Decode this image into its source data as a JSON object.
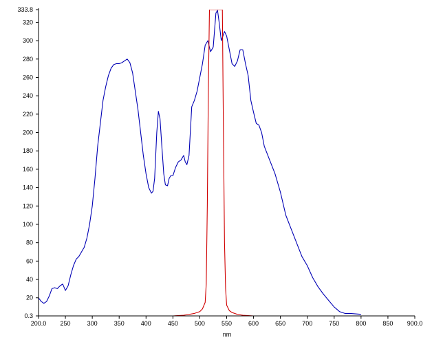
{
  "chart_data": {
    "type": "line",
    "xlabel": "nm",
    "ylabel": "",
    "xlim": [
      200,
      900
    ],
    "ylim": [
      0.3,
      333.8
    ],
    "grid": false,
    "colors": {
      "series_blue": "#0000b4",
      "series_red": "#d00000",
      "axis": "#000000"
    },
    "x_ticks": [
      {
        "value": 200,
        "label": "200.0"
      },
      {
        "value": 250,
        "label": "250"
      },
      {
        "value": 300,
        "label": "300"
      },
      {
        "value": 350,
        "label": "350"
      },
      {
        "value": 400,
        "label": "400"
      },
      {
        "value": 450,
        "label": "450"
      },
      {
        "value": 500,
        "label": "500"
      },
      {
        "value": 550,
        "label": "550"
      },
      {
        "value": 600,
        "label": "600"
      },
      {
        "value": 650,
        "label": "650"
      },
      {
        "value": 700,
        "label": "700"
      },
      {
        "value": 750,
        "label": "750"
      },
      {
        "value": 800,
        "label": "800"
      },
      {
        "value": 850,
        "label": "850"
      },
      {
        "value": 900,
        "label": "900.0"
      }
    ],
    "y_ticks": [
      {
        "value": 0.3,
        "label": "0.3"
      },
      {
        "value": 20,
        "label": "20"
      },
      {
        "value": 40,
        "label": "40"
      },
      {
        "value": 60,
        "label": "60"
      },
      {
        "value": 80,
        "label": "80"
      },
      {
        "value": 100,
        "label": "100"
      },
      {
        "value": 120,
        "label": "120"
      },
      {
        "value": 140,
        "label": "140"
      },
      {
        "value": 160,
        "label": "160"
      },
      {
        "value": 180,
        "label": "180"
      },
      {
        "value": 200,
        "label": "200"
      },
      {
        "value": 220,
        "label": "220"
      },
      {
        "value": 240,
        "label": "240"
      },
      {
        "value": 260,
        "label": "260"
      },
      {
        "value": 280,
        "label": "280"
      },
      {
        "value": 300,
        "label": "300"
      },
      {
        "value": 320,
        "label": "320"
      },
      {
        "value": 333.8,
        "label": "333.8"
      }
    ],
    "series": [
      {
        "color": "#0000b4",
        "x": [
          200,
          205,
          210,
          215,
          220,
          225,
          230,
          235,
          240,
          245,
          250,
          255,
          260,
          265,
          270,
          275,
          280,
          285,
          290,
          295,
          300,
          305,
          310,
          315,
          320,
          325,
          330,
          335,
          340,
          345,
          350,
          355,
          360,
          365,
          370,
          375,
          380,
          385,
          390,
          395,
          400,
          405,
          410,
          413,
          416,
          420,
          423,
          426,
          430,
          433,
          436,
          440,
          443,
          446,
          450,
          455,
          460,
          465,
          470,
          473,
          476,
          480,
          485,
          490,
          495,
          500,
          505,
          510,
          515,
          520,
          525,
          530,
          533,
          536,
          540,
          543,
          546,
          550,
          555,
          560,
          565,
          570,
          575,
          580,
          585,
          590,
          595,
          600,
          605,
          610,
          615,
          620,
          630,
          640,
          650,
          660,
          670,
          680,
          690,
          700,
          710,
          720,
          730,
          740,
          750,
          760,
          770,
          780,
          790,
          800
        ],
        "y": [
          20,
          16,
          14,
          16,
          22,
          30,
          31,
          30,
          33,
          35,
          28,
          33,
          45,
          55,
          62,
          65,
          70,
          75,
          85,
          100,
          120,
          150,
          185,
          210,
          235,
          250,
          262,
          270,
          274,
          275,
          275,
          276,
          278,
          280,
          276,
          265,
          245,
          225,
          200,
          175,
          155,
          140,
          134,
          136,
          150,
          200,
          223,
          215,
          180,
          155,
          143,
          142,
          150,
          153,
          153,
          162,
          168,
          170,
          175,
          168,
          165,
          175,
          228,
          235,
          245,
          260,
          275,
          295,
          300,
          288,
          293,
          330,
          333,
          320,
          300,
          305,
          310,
          305,
          290,
          275,
          272,
          278,
          290,
          290,
          275,
          262,
          235,
          222,
          210,
          208,
          200,
          185,
          170,
          155,
          135,
          110,
          95,
          80,
          65,
          55,
          42,
          32,
          24,
          17,
          10,
          5,
          3,
          3,
          2.5,
          2
        ]
      },
      {
        "color": "#d00000",
        "x": [
          200,
          400,
          450,
          470,
          480,
          490,
          500,
          505,
          510,
          512,
          514,
          516,
          518,
          520,
          522,
          524,
          526,
          528,
          530,
          532,
          534,
          536,
          538,
          540,
          542,
          544,
          546,
          548,
          550,
          555,
          560,
          570,
          580,
          600,
          700,
          900
        ],
        "y": [
          0.3,
          0.3,
          0.3,
          1,
          2,
          3,
          5,
          8,
          15,
          35,
          120,
          250,
          333.8,
          333.8,
          333.8,
          333.8,
          333.8,
          333.8,
          333.8,
          333.8,
          333.8,
          333.8,
          333.8,
          333.8,
          333.8,
          200,
          80,
          30,
          12,
          6,
          4,
          2,
          1,
          0.3,
          0.3,
          0.3
        ]
      }
    ]
  }
}
